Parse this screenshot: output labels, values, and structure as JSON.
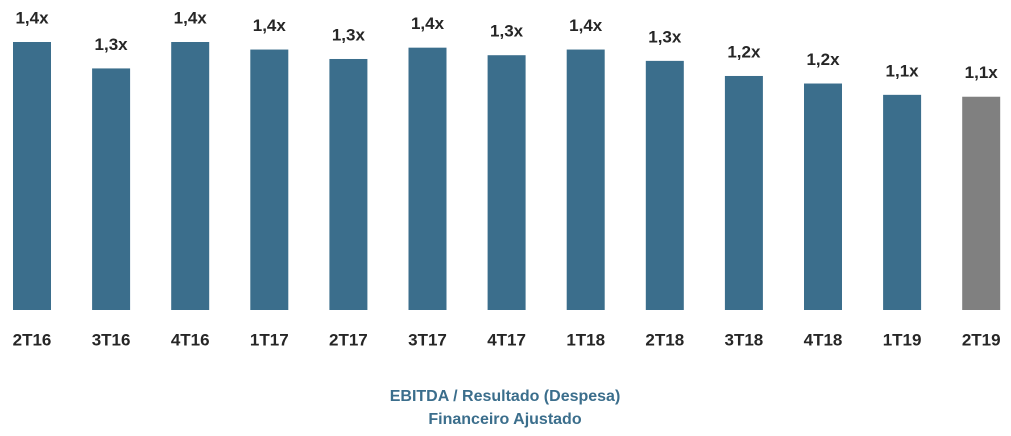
{
  "chart_data": {
    "type": "bar",
    "title": [
      "EBITDA / Resultado (Despesa)",
      "Financeiro Ajustado"
    ],
    "categories": [
      "2T16",
      "3T16",
      "4T16",
      "1T17",
      "2T17",
      "3T17",
      "4T17",
      "1T18",
      "2T18",
      "3T18",
      "4T18",
      "1T19",
      "2T19"
    ],
    "values": [
      1.42,
      1.28,
      1.42,
      1.38,
      1.33,
      1.39,
      1.35,
      1.38,
      1.32,
      1.24,
      1.2,
      1.14,
      1.13
    ],
    "value_labels": [
      "1,4x",
      "1,3x",
      "1,4x",
      "1,4x",
      "1,3x",
      "1,4x",
      "1,3x",
      "1,4x",
      "1,3x",
      "1,2x",
      "1,2x",
      "1,1x",
      "1,1x"
    ],
    "colors": [
      "#3b6e8c",
      "#3b6e8c",
      "#3b6e8c",
      "#3b6e8c",
      "#3b6e8c",
      "#3b6e8c",
      "#3b6e8c",
      "#3b6e8c",
      "#3b6e8c",
      "#3b6e8c",
      "#3b6e8c",
      "#3b6e8c",
      "#808080"
    ]
  }
}
